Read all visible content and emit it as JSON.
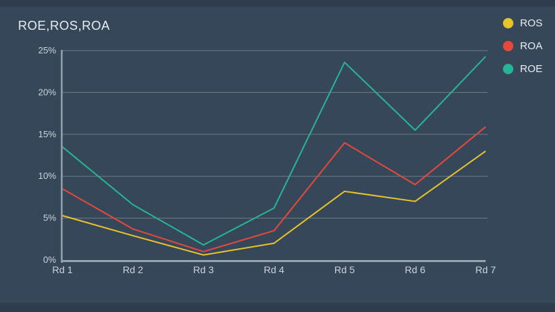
{
  "title": "ROE,ROS,ROA",
  "legend": [
    {
      "label": "ROS",
      "color": "#e8c32a"
    },
    {
      "label": "ROA",
      "color": "#e6493a"
    },
    {
      "label": "ROE",
      "color": "#27b599"
    }
  ],
  "chart_data": {
    "type": "line",
    "title": "ROE,ROS,ROA",
    "categories": [
      "Rd 1",
      "Rd 2",
      "Rd 3",
      "Rd 4",
      "Rd 5",
      "Rd 6",
      "Rd 7"
    ],
    "series": [
      {
        "name": "ROS",
        "color": "#e8c32a",
        "values": [
          5.3,
          2.9,
          0.6,
          2.0,
          8.2,
          7.0,
          13.0
        ]
      },
      {
        "name": "ROA",
        "color": "#e6493a",
        "values": [
          8.5,
          3.7,
          1.0,
          3.5,
          14.0,
          9.0,
          15.9
        ]
      },
      {
        "name": "ROE",
        "color": "#27b599",
        "values": [
          13.5,
          6.6,
          1.8,
          6.2,
          23.6,
          15.5,
          24.3
        ]
      }
    ],
    "ylim": [
      0,
      25
    ],
    "yticks": [
      "0%",
      "5%",
      "10%",
      "15%",
      "20%",
      "25%"
    ],
    "xlabel": "",
    "ylabel": "",
    "grid": true,
    "legend_position": "top-right",
    "background": "#36475a",
    "grid_color": "rgba(255,255,255,0.28)",
    "axis_color": "#97a2ae"
  }
}
